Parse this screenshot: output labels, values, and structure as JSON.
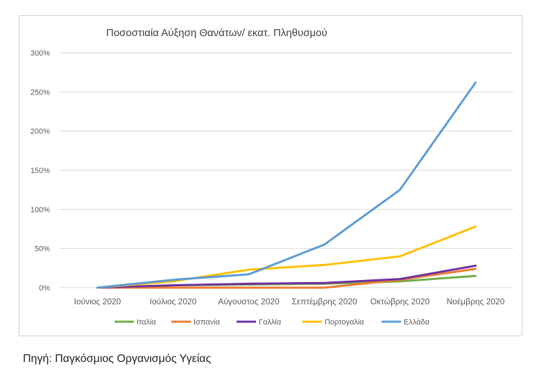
{
  "chart_data": {
    "type": "line",
    "title": "Ποσοστιαία Αύξηση Θανάτων/ εκατ. Πληθυσμού",
    "categories": [
      "Ιούνιος 2020",
      "Ιούλιος 2020",
      "Αύγουστος 2020",
      "Σεπτέμβρης 2020",
      "Οκτώβρης 2020",
      "Νοέμβρης 2020"
    ],
    "ylim": [
      0,
      300
    ],
    "y_unit": "%",
    "y_ticks": [
      "0%",
      "50%",
      "100%",
      "150%",
      "200%",
      "250%",
      "300%"
    ],
    "grid": true,
    "legend_position": "bottom",
    "series": [
      {
        "name": "Ιταλία",
        "color": "#70ad47",
        "values": [
          0,
          3,
          4,
          5,
          8,
          15
        ]
      },
      {
        "name": "Ισπανία",
        "color": "#ed7d31",
        "values": [
          0,
          0,
          0,
          0,
          10,
          24
        ]
      },
      {
        "name": "Γαλλία",
        "color": "#7030a0",
        "values": [
          0,
          3,
          5,
          6,
          11,
          28
        ]
      },
      {
        "name": "Πορτογαλία",
        "color": "#ffc000",
        "values": [
          0,
          8,
          23,
          29,
          40,
          78
        ]
      },
      {
        "name": "Ελλάδα",
        "color": "#5b9bd5",
        "values": [
          0,
          10,
          17,
          55,
          125,
          262
        ]
      }
    ]
  },
  "source": "Πηγή: Παγκόσμιος Οργανισμός Υγείας"
}
